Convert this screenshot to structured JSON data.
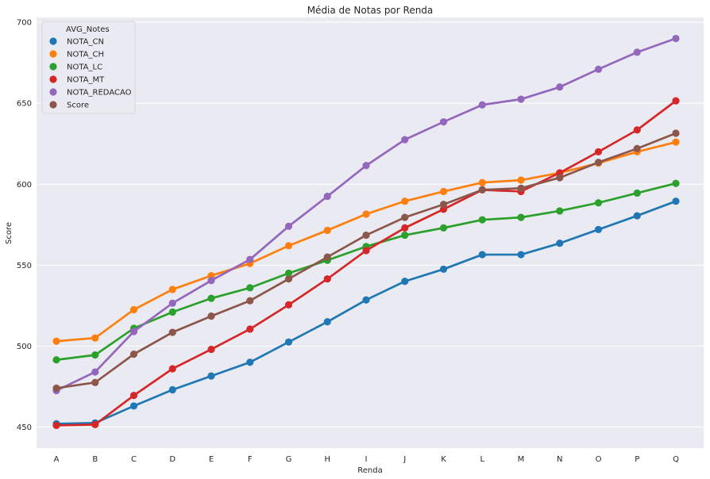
{
  "chart_data": {
    "type": "line",
    "title": "Média de Notas por Renda",
    "xlabel": "Renda",
    "ylabel": "Score",
    "categories": [
      "A",
      "B",
      "C",
      "D",
      "E",
      "F",
      "G",
      "H",
      "I",
      "J",
      "K",
      "L",
      "M",
      "N",
      "O",
      "P",
      "Q"
    ],
    "ylim": [
      437,
      703
    ],
    "yticks": [
      450,
      500,
      550,
      600,
      650,
      700
    ],
    "grid": true,
    "legend": {
      "title": "AVG_Notes",
      "placement": "top-left"
    },
    "series": [
      {
        "name": "NOTA_CN",
        "color": "#1f77b4",
        "values": [
          452,
          452.5,
          463,
          473,
          481.5,
          490,
          502.5,
          515,
          528.5,
          540,
          547.5,
          556.5,
          556.5,
          563.5,
          572,
          580.5,
          589.5
        ]
      },
      {
        "name": "NOTA_CH",
        "color": "#ff7f0e",
        "values": [
          503,
          505,
          522.5,
          535,
          543.5,
          551,
          562,
          571.5,
          581.5,
          589.5,
          595.5,
          601,
          602.5,
          607,
          613,
          620,
          626
        ]
      },
      {
        "name": "NOTA_LC",
        "color": "#2ca02c",
        "values": [
          491.5,
          494.5,
          511,
          521,
          529.5,
          536,
          545,
          553,
          561.5,
          568.5,
          573,
          578,
          579.5,
          583.5,
          588.5,
          594.5,
          600.5
        ]
      },
      {
        "name": "NOTA_MT",
        "color": "#d62728",
        "values": [
          451,
          451.5,
          469.5,
          486,
          498,
          510.5,
          525.5,
          541.5,
          559,
          573,
          584.5,
          596.5,
          595.5,
          607,
          620,
          633.5,
          651.5
        ]
      },
      {
        "name": "NOTA_REDACAO",
        "color": "#9467bd",
        "values": [
          472.5,
          484,
          509,
          526.5,
          540.5,
          553.5,
          574,
          592.5,
          611.5,
          627.5,
          638.5,
          649,
          652.5,
          660,
          671,
          681.5,
          690
        ]
      },
      {
        "name": "Score",
        "color": "#8c564b",
        "values": [
          474,
          477.5,
          495,
          508.5,
          518.5,
          528,
          541.5,
          555,
          568.5,
          579.5,
          587.5,
          596.5,
          597.5,
          604,
          613.5,
          622,
          631.5
        ]
      }
    ]
  }
}
